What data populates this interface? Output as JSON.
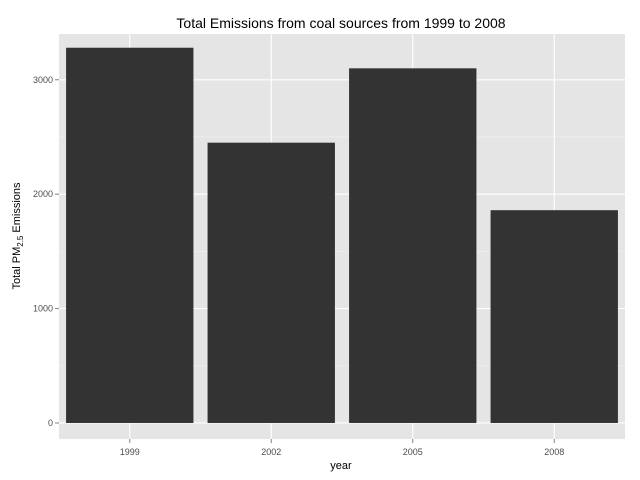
{
  "chart_data": {
    "type": "bar",
    "title": "Total Emissions from coal sources from 1999 to 2008",
    "xlabel": "year",
    "ylabel": {
      "prefix": "Total PM",
      "subscript": "2.5",
      "suffix": " Emissions"
    },
    "categories": [
      "1999",
      "2002",
      "2005",
      "2008"
    ],
    "values": [
      3280,
      2450,
      3100,
      1860
    ],
    "ylim": [
      -140,
      3400
    ],
    "yticks": [
      0,
      1000,
      2000,
      3000
    ],
    "grid": true,
    "colors": {
      "panel": "#e5e5e5",
      "grid_major": "#ffffff",
      "grid_minor": "#f2f2f2",
      "bar": "#333333",
      "tick_label": "#4d4d4d"
    }
  }
}
